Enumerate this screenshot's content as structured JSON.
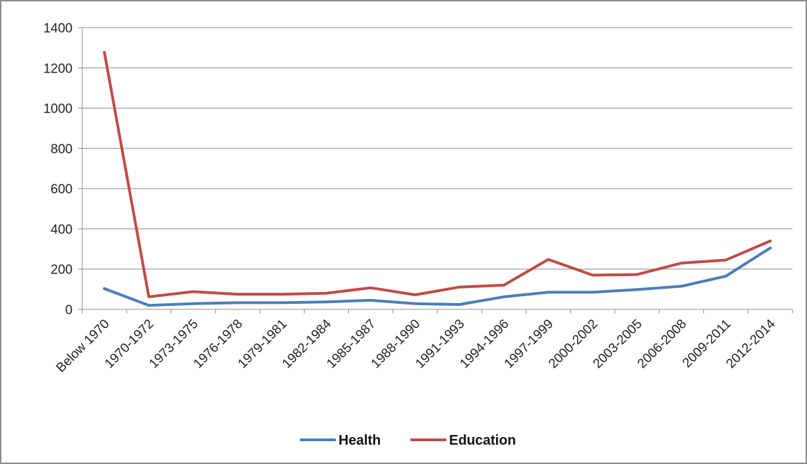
{
  "chart_data": {
    "type": "line",
    "categories": [
      "Below 1970",
      "1970-1972",
      "1973-1975",
      "1976-1978",
      "1979-1981",
      "1982-1984",
      "1985-1987",
      "1988-1990",
      "1991-1993",
      "1994-1996",
      "1997-1999",
      "2000-2002",
      "2003-2005",
      "2006-2008",
      "2009-2011",
      "2012-2014"
    ],
    "series": [
      {
        "name": "Health",
        "color": "#4a7ebb",
        "values": [
          103,
          20,
          28,
          33,
          33,
          37,
          45,
          28,
          24,
          62,
          85,
          85,
          98,
          115,
          165,
          305
        ]
      },
      {
        "name": "Education",
        "color": "#be4b48",
        "values": [
          1277,
          62,
          88,
          75,
          75,
          80,
          107,
          72,
          111,
          120,
          248,
          170,
          173,
          230,
          245,
          340
        ]
      }
    ],
    "ylim": [
      0,
      1400
    ],
    "yticks": [
      0,
      200,
      400,
      600,
      800,
      1000,
      1200,
      1400
    ],
    "grid": true,
    "legend": "bottom",
    "title": "",
    "xlabel": "",
    "ylabel": ""
  }
}
